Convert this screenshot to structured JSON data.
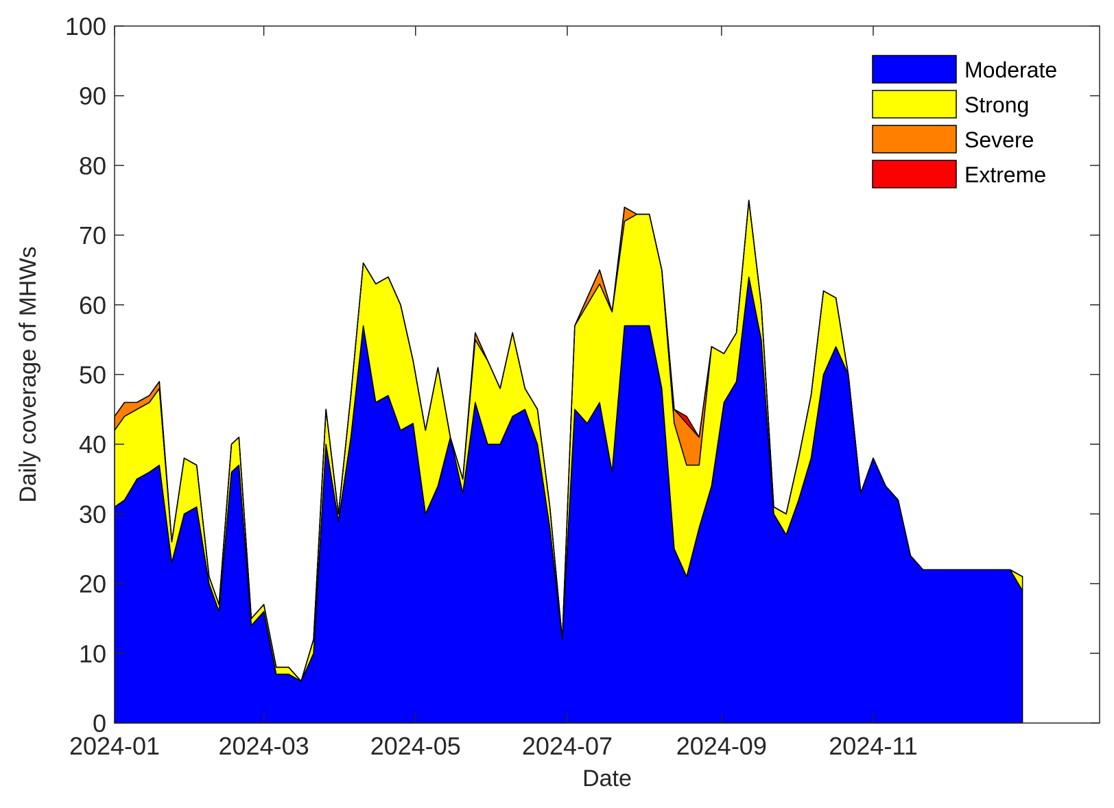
{
  "chart_data": {
    "type": "area",
    "stacked": true,
    "xlabel": "Date",
    "ylabel": "Daily coverage of MHWs",
    "ylim": [
      0,
      100
    ],
    "yticks": [
      0,
      10,
      20,
      30,
      40,
      50,
      60,
      70,
      80,
      90,
      100
    ],
    "xlim": [
      "2024-01-01",
      "2025-01-31"
    ],
    "xticks": [
      "2024-01",
      "2024-03",
      "2024-05",
      "2024-07",
      "2024-09",
      "2024-11"
    ],
    "grid": false,
    "legend_position": "top-right",
    "dates": [
      "2024-01-01",
      "2024-01-05",
      "2024-01-10",
      "2024-01-15",
      "2024-01-19",
      "2024-01-24",
      "2024-01-29",
      "2024-02-03",
      "2024-02-08",
      "2024-02-12",
      "2024-02-17",
      "2024-02-20",
      "2024-02-25",
      "2024-03-01",
      "2024-03-06",
      "2024-03-11",
      "2024-03-16",
      "2024-03-21",
      "2024-03-26",
      "2024-03-31",
      "2024-04-05",
      "2024-04-10",
      "2024-04-15",
      "2024-04-20",
      "2024-04-25",
      "2024-04-30",
      "2024-05-05",
      "2024-05-10",
      "2024-05-15",
      "2024-05-20",
      "2024-05-25",
      "2024-05-30",
      "2024-06-04",
      "2024-06-09",
      "2024-06-14",
      "2024-06-19",
      "2024-06-24",
      "2024-06-29",
      "2024-07-04",
      "2024-07-09",
      "2024-07-14",
      "2024-07-19",
      "2024-07-24",
      "2024-07-29",
      "2024-08-03",
      "2024-08-08",
      "2024-08-13",
      "2024-08-18",
      "2024-08-23",
      "2024-08-28",
      "2024-09-02",
      "2024-09-07",
      "2024-09-12",
      "2024-09-17",
      "2024-09-22",
      "2024-09-27",
      "2024-10-02",
      "2024-10-07",
      "2024-10-12",
      "2024-10-17",
      "2024-10-22",
      "2024-10-27",
      "2024-11-01",
      "2024-11-06",
      "2024-11-11",
      "2024-11-16",
      "2024-11-21",
      "2024-11-26",
      "2024-12-01",
      "2024-12-06",
      "2024-12-11",
      "2024-12-16",
      "2024-12-21",
      "2024-12-26",
      "2024-12-31"
    ],
    "series": [
      {
        "name": "Moderate",
        "color": "#0000ff",
        "values": [
          31,
          32,
          35,
          36,
          37,
          23,
          30,
          31,
          20,
          16,
          36,
          37,
          14,
          16,
          7,
          7,
          6,
          10,
          40,
          29,
          41,
          57,
          46,
          47,
          42,
          43,
          30,
          34,
          41,
          33,
          46,
          40,
          40,
          44,
          45,
          40,
          28,
          12,
          45,
          43,
          46,
          36,
          57,
          57,
          57,
          48,
          25,
          21,
          28,
          34,
          46,
          49,
          64,
          55,
          30,
          27,
          32,
          38,
          50,
          54,
          50,
          33,
          38,
          34,
          32,
          24,
          22,
          22,
          22,
          22,
          22,
          22,
          22,
          22,
          19
        ]
      },
      {
        "name": "Strong",
        "color": "#ffff00",
        "values": [
          11,
          12,
          10,
          10,
          11,
          3,
          8,
          6,
          1,
          1,
          4,
          4,
          1,
          1,
          1,
          1,
          0,
          2,
          5,
          1,
          6,
          9,
          17,
          17,
          18,
          9,
          12,
          17,
          0,
          2,
          9,
          12,
          8,
          12,
          3,
          5,
          3,
          0,
          12,
          17,
          17,
          23,
          15,
          16,
          16,
          17,
          18,
          16,
          9,
          20,
          7,
          7,
          11,
          5,
          1,
          3,
          6,
          9,
          12,
          7,
          0,
          0,
          0,
          0,
          0,
          0,
          0,
          0,
          0,
          0,
          0,
          0,
          0,
          0,
          2
        ]
      },
      {
        "name": "Severe",
        "color": "#ff8000",
        "values": [
          2,
          2,
          1,
          1,
          1,
          0,
          0,
          0,
          0,
          0,
          0,
          0,
          0,
          0,
          0,
          0,
          0,
          0,
          0,
          0,
          0,
          0,
          0,
          0,
          0,
          0,
          0,
          0,
          0,
          0,
          1,
          0,
          0,
          0,
          0,
          0,
          0,
          0,
          0,
          1,
          2,
          0,
          2,
          0,
          0,
          0,
          2,
          6,
          4,
          0,
          0,
          0,
          0,
          0,
          0,
          0,
          0,
          0,
          0,
          0,
          0,
          0,
          0,
          0,
          0,
          0,
          0,
          0,
          0,
          0,
          0,
          0,
          0,
          0,
          0
        ]
      },
      {
        "name": "Extreme",
        "color": "#ff0000",
        "values": [
          0,
          0,
          0,
          0,
          0,
          0,
          0,
          0,
          0,
          0,
          0,
          0,
          0,
          0,
          0,
          0,
          0,
          0,
          0,
          0,
          0,
          0,
          0,
          0,
          0,
          0,
          0,
          0,
          0,
          0,
          0,
          0,
          0,
          0,
          0,
          0,
          0,
          0,
          0,
          0,
          0,
          0,
          0,
          0,
          0,
          0,
          0,
          1,
          0,
          0,
          0,
          0,
          0,
          0,
          0,
          0,
          0,
          0,
          0,
          0,
          0,
          0,
          0,
          0,
          0,
          0,
          0,
          0,
          0,
          0,
          0,
          0,
          0,
          0,
          0
        ]
      }
    ]
  }
}
